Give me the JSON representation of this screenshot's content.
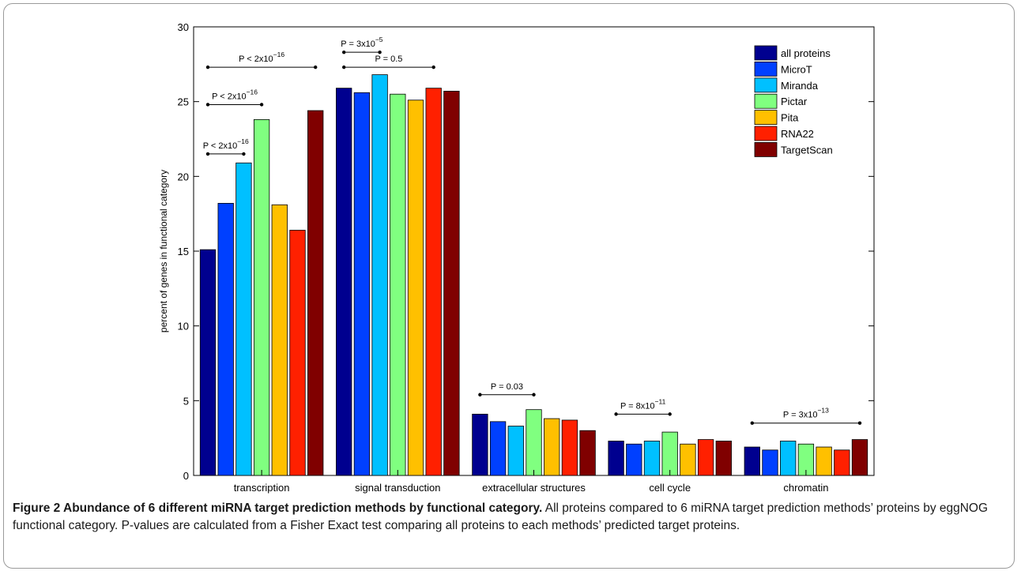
{
  "chart_data": {
    "type": "bar",
    "ylabel": "percent of genes in functional category",
    "xlabel": "",
    "ylim": [
      0,
      30
    ],
    "yticks": [
      0,
      5,
      10,
      15,
      20,
      25,
      30
    ],
    "categories": [
      "transcription",
      "signal transduction",
      "extracellular structures",
      "cell cycle",
      "chromatin"
    ],
    "series": [
      {
        "name": "all proteins",
        "color": "#00008f",
        "values": [
          15.1,
          25.9,
          4.1,
          2.3,
          1.9
        ]
      },
      {
        "name": "MicroT",
        "color": "#0040ff",
        "values": [
          18.2,
          25.6,
          3.6,
          2.1,
          1.7
        ]
      },
      {
        "name": "Miranda",
        "color": "#00c0ff",
        "values": [
          20.9,
          26.8,
          3.3,
          2.3,
          2.3
        ]
      },
      {
        "name": "Pictar",
        "color": "#80ff80",
        "values": [
          23.8,
          25.5,
          4.4,
          2.9,
          2.1
        ]
      },
      {
        "name": "Pita",
        "color": "#ffc000",
        "values": [
          18.1,
          25.1,
          3.8,
          2.1,
          1.9
        ]
      },
      {
        "name": "RNA22",
        "color": "#ff2000",
        "values": [
          16.4,
          25.9,
          3.7,
          2.4,
          1.7
        ]
      },
      {
        "name": "TargetScan",
        "color": "#800000",
        "values": [
          24.4,
          25.7,
          3.0,
          2.3,
          2.4
        ]
      }
    ],
    "legend_position": "top-right",
    "grid": false,
    "annotations": [
      {
        "category": 0,
        "from_series": 0,
        "to_series": 6,
        "level": 27.3,
        "base": "P < 2x10",
        "exp": "−16"
      },
      {
        "category": 0,
        "from_series": 0,
        "to_series": 3,
        "level": 24.8,
        "base": "P < 2x10",
        "exp": "−16"
      },
      {
        "category": 0,
        "from_series": 0,
        "to_series": 2,
        "level": 21.5,
        "base": "P < 2x10",
        "exp": "−16"
      },
      {
        "category": 1,
        "from_series": 0,
        "to_series": 2,
        "level": 28.3,
        "base": "P = 3x10",
        "exp": "−5"
      },
      {
        "category": 1,
        "from_series": 0,
        "to_series": 5,
        "level": 27.3,
        "base": "P = 0.5",
        "exp": ""
      },
      {
        "category": 2,
        "from_series": 0,
        "to_series": 3,
        "level": 5.4,
        "base": "P = 0.03",
        "exp": ""
      },
      {
        "category": 3,
        "from_series": 0,
        "to_series": 3,
        "level": 4.1,
        "base": "P = 8x10",
        "exp": "−11"
      },
      {
        "category": 4,
        "from_series": 0,
        "to_series": 6,
        "level": 3.5,
        "base": "P = 3x10",
        "exp": "−13"
      }
    ]
  },
  "caption": {
    "title": "Figure 2 Abundance of 6 different miRNA target prediction methods by functional category.",
    "body": " All proteins compared to 6 miRNA target prediction methods’ proteins by eggNOG functional category. P-values are calculated from a Fisher Exact test comparing all proteins to each methods’ predicted target proteins."
  }
}
